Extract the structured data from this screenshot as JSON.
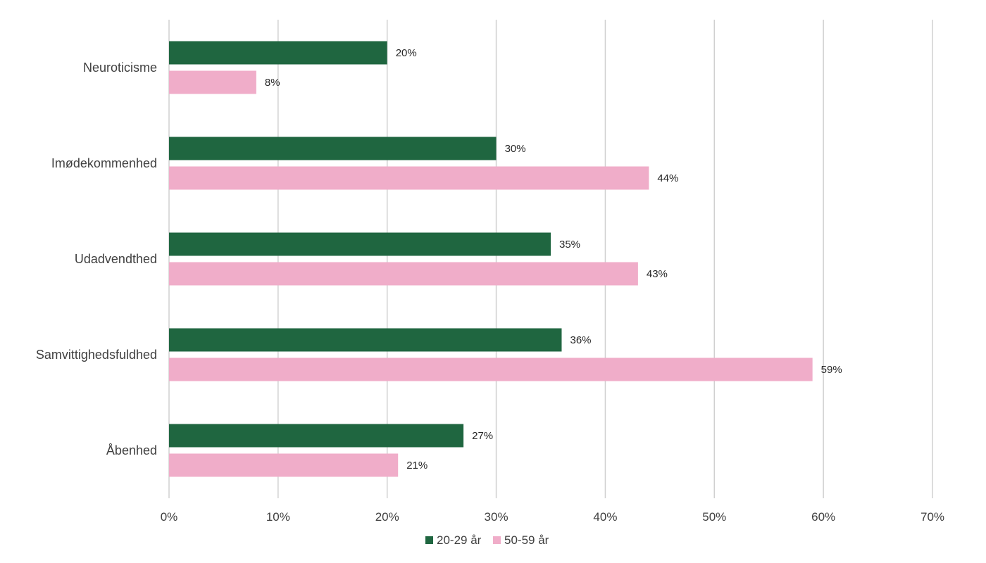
{
  "chart_data": {
    "type": "bar",
    "orientation": "horizontal",
    "title": "",
    "xlabel": "",
    "ylabel": "",
    "categories": [
      "Neuroticisme",
      "Imødekommenhed",
      "Udadvendthed",
      "Samvittighedsfuldhed",
      "Åbenhed"
    ],
    "series": [
      {
        "name": "20-29 år",
        "color": "#1f6640",
        "values": [
          20,
          30,
          35,
          36,
          27
        ],
        "labels": [
          "20%",
          "30%",
          "35%",
          "36%",
          "27%"
        ]
      },
      {
        "name": "50-59 år",
        "color": "#f0adc9",
        "values": [
          8,
          44,
          43,
          59,
          21
        ],
        "labels": [
          "8%",
          "44%",
          "43%",
          "59%",
          "21%"
        ]
      }
    ],
    "xlim": [
      0,
      70
    ],
    "xticks": [
      0,
      10,
      20,
      30,
      40,
      50,
      60,
      70
    ],
    "xtick_labels": [
      "0%",
      "10%",
      "20%",
      "30%",
      "40%",
      "50%",
      "60%",
      "70%"
    ],
    "grid": "vertical",
    "legend": "bottom-center"
  }
}
